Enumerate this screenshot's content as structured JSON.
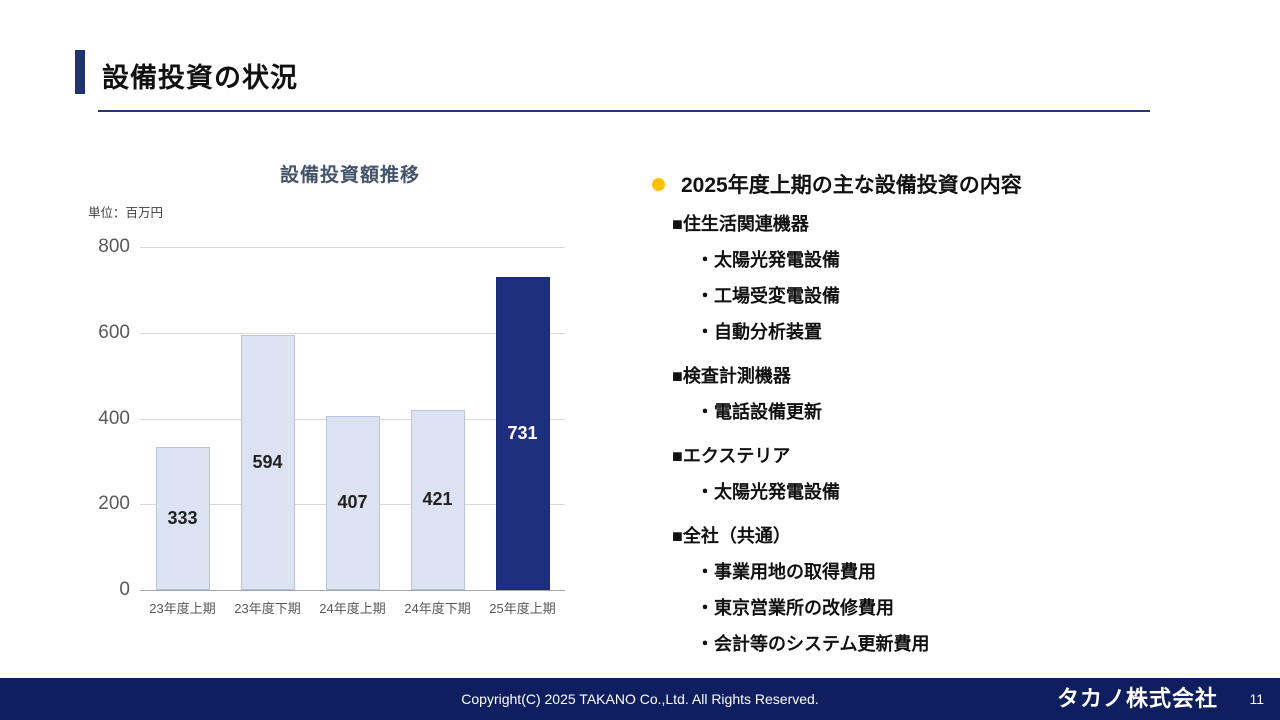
{
  "slide": {
    "title": "設備投資の状況",
    "page_number": "11",
    "footer": {
      "copyright": "Copyright(C) 2025 TAKANO Co.,Ltd. All Rights Reserved.",
      "company_logo": "タカノ株式会社"
    }
  },
  "chart": {
    "title": "設備投資額推移",
    "unit_label": "単位：百万円"
  },
  "chart_data": {
    "type": "bar",
    "title": "設備投資額推移",
    "unit": "百万円",
    "categories": [
      "23年度上期",
      "23年度下期",
      "24年度上期",
      "24年度下期",
      "25年度上期"
    ],
    "values": [
      333,
      594,
      407,
      421,
      731
    ],
    "ylim": [
      0,
      800
    ],
    "yticks": [
      0,
      200,
      400,
      600,
      800
    ],
    "bar_colors": [
      "#dce3f2",
      "#dce3f2",
      "#dce3f2",
      "#dce3f2",
      "#1e2f80"
    ],
    "highlight_index": 4,
    "grid": true,
    "legend": false
  },
  "right_panel": {
    "heading": "2025年度上期の主な設備投資の内容",
    "sections": [
      {
        "title": "■住生活関連機器",
        "items": [
          "・太陽光発電設備",
          "・工場受変電設備",
          "・自動分析装置"
        ]
      },
      {
        "title": "■検査計測機器",
        "items": [
          "・電話設備更新"
        ]
      },
      {
        "title": "■エクステリア",
        "items": [
          "・太陽光発電設備"
        ]
      },
      {
        "title": "■全社（共通）",
        "items": [
          "・事業用地の取得費用",
          "・東京営業所の改修費用",
          "・会計等のシステム更新費用"
        ]
      }
    ]
  }
}
